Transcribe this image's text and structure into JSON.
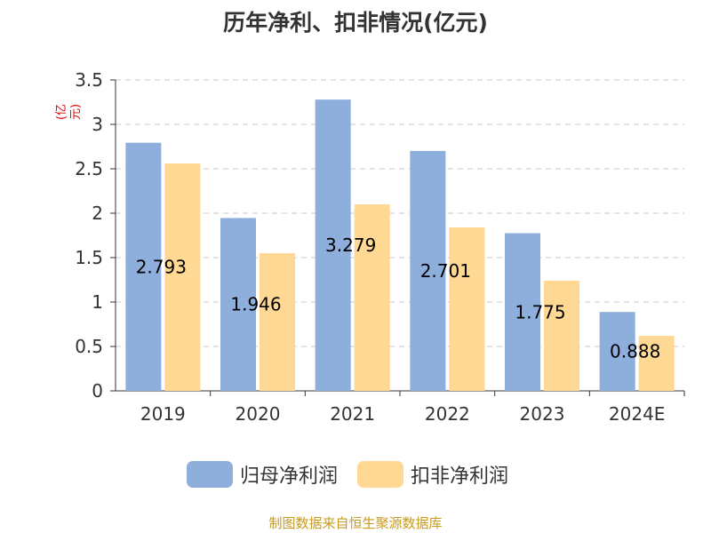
{
  "title": "历年净利、扣非情况(亿元)",
  "unit_label": "(亿元)",
  "source": "制图数据来自恒生聚源数据库",
  "colors": {
    "series0": "#8eaedc",
    "series1": "#ffd893",
    "label": "#000000",
    "axis": "#333333",
    "grid": "#c8c8c8"
  },
  "chart_data": {
    "type": "bar",
    "categories": [
      "2019",
      "2020",
      "2021",
      "2022",
      "2023",
      "2024E"
    ],
    "series": [
      {
        "name": "归母净利润",
        "values": [
          2.793,
          1.946,
          3.279,
          2.701,
          1.775,
          0.888
        ]
      },
      {
        "name": "扣非净利润",
        "values": [
          2.56,
          1.55,
          2.1,
          1.84,
          1.24,
          0.62
        ]
      }
    ],
    "data_labels": [
      "2.793",
      "1.946",
      "3.279",
      "2.701",
      "1.775",
      "0.888"
    ],
    "yticks": [
      "0",
      "0.5",
      "1",
      "1.5",
      "2",
      "2.5",
      "3",
      "3.5"
    ],
    "ylim": [
      0,
      3.5
    ],
    "grid": true,
    "legend": "bottom"
  }
}
